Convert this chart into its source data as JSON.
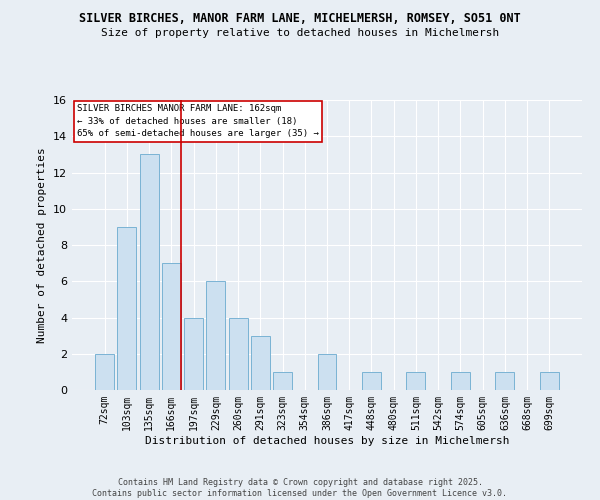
{
  "title1": "SILVER BIRCHES, MANOR FARM LANE, MICHELMERSH, ROMSEY, SO51 0NT",
  "title2": "Size of property relative to detached houses in Michelmersh",
  "xlabel": "Distribution of detached houses by size in Michelmersh",
  "ylabel": "Number of detached properties",
  "categories": [
    "72sqm",
    "103sqm",
    "135sqm",
    "166sqm",
    "197sqm",
    "229sqm",
    "260sqm",
    "291sqm",
    "323sqm",
    "354sqm",
    "386sqm",
    "417sqm",
    "448sqm",
    "480sqm",
    "511sqm",
    "542sqm",
    "574sqm",
    "605sqm",
    "636sqm",
    "668sqm",
    "699sqm"
  ],
  "values": [
    2,
    9,
    13,
    7,
    4,
    6,
    4,
    3,
    1,
    0,
    2,
    0,
    1,
    0,
    1,
    0,
    1,
    0,
    1,
    0,
    1
  ],
  "bar_color": "#cce0f0",
  "bar_edge_color": "#7ab3d4",
  "vline_color": "#cc0000",
  "vline_x": 3.43,
  "ylim": [
    0,
    16
  ],
  "yticks": [
    0,
    2,
    4,
    6,
    8,
    10,
    12,
    14,
    16
  ],
  "annotation_lines": [
    "SILVER BIRCHES MANOR FARM LANE: 162sqm",
    "← 33% of detached houses are smaller (18)",
    "65% of semi-detached houses are larger (35) →"
  ],
  "annotation_box_color": "#ffffff",
  "annotation_box_edge": "#cc0000",
  "footer_line1": "Contains HM Land Registry data © Crown copyright and database right 2025.",
  "footer_line2": "Contains public sector information licensed under the Open Government Licence v3.0.",
  "bg_color": "#e8eef4",
  "plot_bg_color": "#e8eef4",
  "grid_color": "#ffffff"
}
